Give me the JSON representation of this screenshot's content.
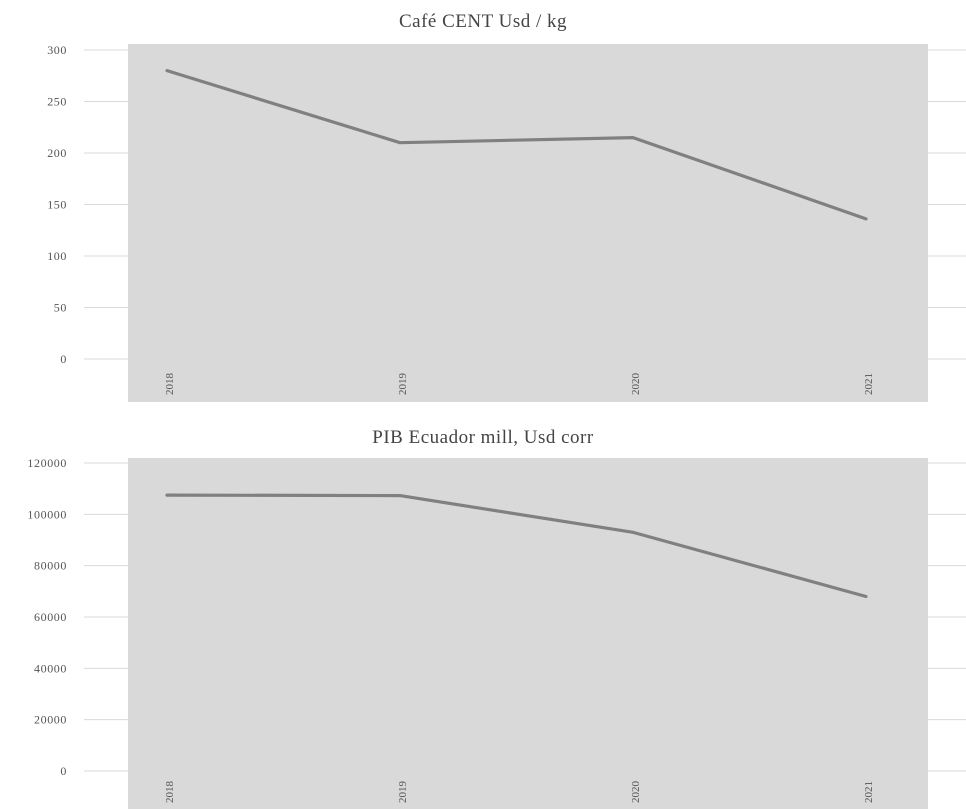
{
  "chart_data": [
    {
      "type": "line",
      "title": "Café CENT Usd / kg",
      "categories": [
        "2018",
        "2019",
        "2020",
        "2021"
      ],
      "series": [
        {
          "values": [
            280,
            210,
            215,
            136
          ]
        }
      ],
      "yticks": [
        "0",
        "50",
        "100",
        "150",
        "200",
        "250",
        "300"
      ],
      "ylim": [
        0,
        300
      ],
      "grid": true,
      "colors": {
        "line": "#808080",
        "plot_band": "#d9d9d9",
        "grid": "#d9d9d9"
      }
    },
    {
      "type": "line",
      "title": "PIB Ecuador mill, Usd corr",
      "categories": [
        "2018",
        "2019",
        "2020",
        "2021"
      ],
      "series": [
        {
          "values": [
            107500,
            107300,
            93000,
            68000
          ]
        }
      ],
      "yticks": [
        "0",
        "20000",
        "40000",
        "60000",
        "80000",
        "100000",
        "120000"
      ],
      "ylim": [
        0,
        120000
      ],
      "grid": true,
      "colors": {
        "line": "#808080",
        "plot_band": "#d9d9d9",
        "grid": "#d9d9d9"
      }
    }
  ]
}
